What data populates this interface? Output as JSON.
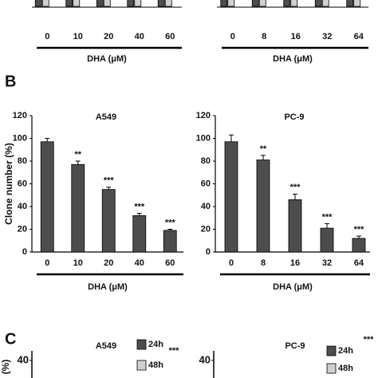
{
  "panel_labels": [
    "B",
    "C"
  ],
  "chart_data": [
    {
      "type": "bar",
      "categories": [
        "0",
        "10",
        "20",
        "40",
        "60"
      ],
      "x_label": "DHA (μM)"
    },
    {
      "type": "bar",
      "categories": [
        "0",
        "8",
        "16",
        "32",
        "64"
      ],
      "x_label": "DHA (μM)"
    },
    {
      "type": "bar",
      "title": "A549",
      "y_label": "Clone number (%)",
      "x_label": "DHA (μM)",
      "categories": [
        "0",
        "10",
        "20",
        "40",
        "60"
      ],
      "values": [
        97,
        77,
        55,
        32,
        19
      ],
      "errors": [
        3,
        3,
        2,
        2,
        1
      ],
      "annotations": [
        null,
        "**",
        "***",
        "***",
        "***"
      ],
      "color": "#4d4d4d",
      "ylim": [
        0,
        120
      ],
      "yticks": [
        0,
        20,
        40,
        60,
        80,
        100,
        120
      ]
    },
    {
      "type": "bar",
      "title": "PC-9",
      "x_label": "DHA (μM)",
      "categories": [
        "0",
        "8",
        "16",
        "32",
        "64"
      ],
      "values": [
        97,
        81,
        46,
        21,
        12
      ],
      "errors": [
        6,
        4,
        5,
        4,
        2
      ],
      "annotations": [
        null,
        "**",
        "***",
        "***",
        "***"
      ],
      "color": "#4d4d4d",
      "ylim": [
        0,
        120
      ],
      "yticks": [
        0,
        20,
        40,
        60,
        80,
        100,
        120
      ]
    },
    {
      "type": "bar",
      "title": "A549",
      "y_label": "(%)",
      "yticks": [
        40
      ],
      "annotations": [
        "***"
      ],
      "series": [
        {
          "name": "24h",
          "color": "#4d4d4d"
        },
        {
          "name": "48h",
          "color": "#d0d0d0"
        }
      ]
    },
    {
      "type": "bar",
      "title": "PC-9",
      "yticks": [
        40
      ],
      "annotations": [
        "***"
      ],
      "series": [
        {
          "name": "24h",
          "color": "#4d4d4d"
        },
        {
          "name": "48h",
          "color": "#d0d0d0"
        }
      ]
    }
  ]
}
